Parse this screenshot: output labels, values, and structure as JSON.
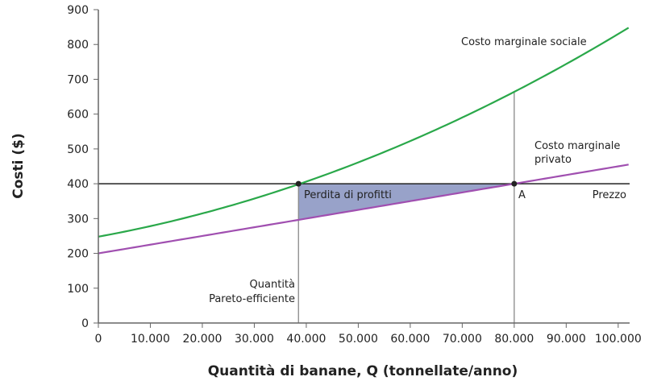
{
  "chart_data": {
    "type": "line",
    "title": "",
    "xlabel": "Quantità di banane, Q (tonnellate/anno)",
    "ylabel": "Costi ($)",
    "xlim": [
      0,
      102200
    ],
    "ylim": [
      0,
      900
    ],
    "x_ticks": [
      0,
      10000,
      20000,
      30000,
      40000,
      50000,
      60000,
      70000,
      80000,
      90000,
      100000
    ],
    "x_tick_labels": [
      "0",
      "10.000",
      "20.000",
      "30.000",
      "40.000",
      "50.000",
      "60.000",
      "70.000",
      "80.000",
      "90.000",
      "100.000"
    ],
    "y_ticks": [
      0,
      100,
      200,
      300,
      400,
      500,
      600,
      700,
      800,
      900
    ],
    "y_tick_labels": [
      "0",
      "100",
      "200",
      "300",
      "400",
      "500",
      "600",
      "700",
      "800",
      "900"
    ],
    "grid": false,
    "series": [
      {
        "name": "Costo marginale sociale",
        "color": "#2aa84a",
        "x": [
          0,
          20000,
          38500,
          60000,
          80000,
          102200
        ],
        "y": [
          248,
          315,
          400,
          520,
          664,
          849
        ]
      },
      {
        "name": "Costo marginale privato",
        "color": "#a04fb0",
        "x": [
          0,
          38500,
          80000,
          102200
        ],
        "y": [
          200,
          296,
          400,
          455
        ]
      },
      {
        "name": "Prezzo",
        "color": "#222222",
        "x": [
          0,
          102200
        ],
        "y": [
          400,
          400
        ]
      }
    ],
    "points": [
      {
        "label": "",
        "x": 38500,
        "y": 400
      },
      {
        "label": "A",
        "x": 80000,
        "y": 400
      }
    ],
    "shaded_region": {
      "label": "Perdita di profitti",
      "color": "#98a2c9"
    },
    "annotations": {
      "social_label": "Costo marginale sociale",
      "private_label_1": "Costo marginale",
      "private_label_2": "privato",
      "price_label": "Prezzo",
      "pareto_label_1": "Quantità",
      "pareto_label_2": "Pareto-efficiente",
      "point_a": "A"
    }
  }
}
